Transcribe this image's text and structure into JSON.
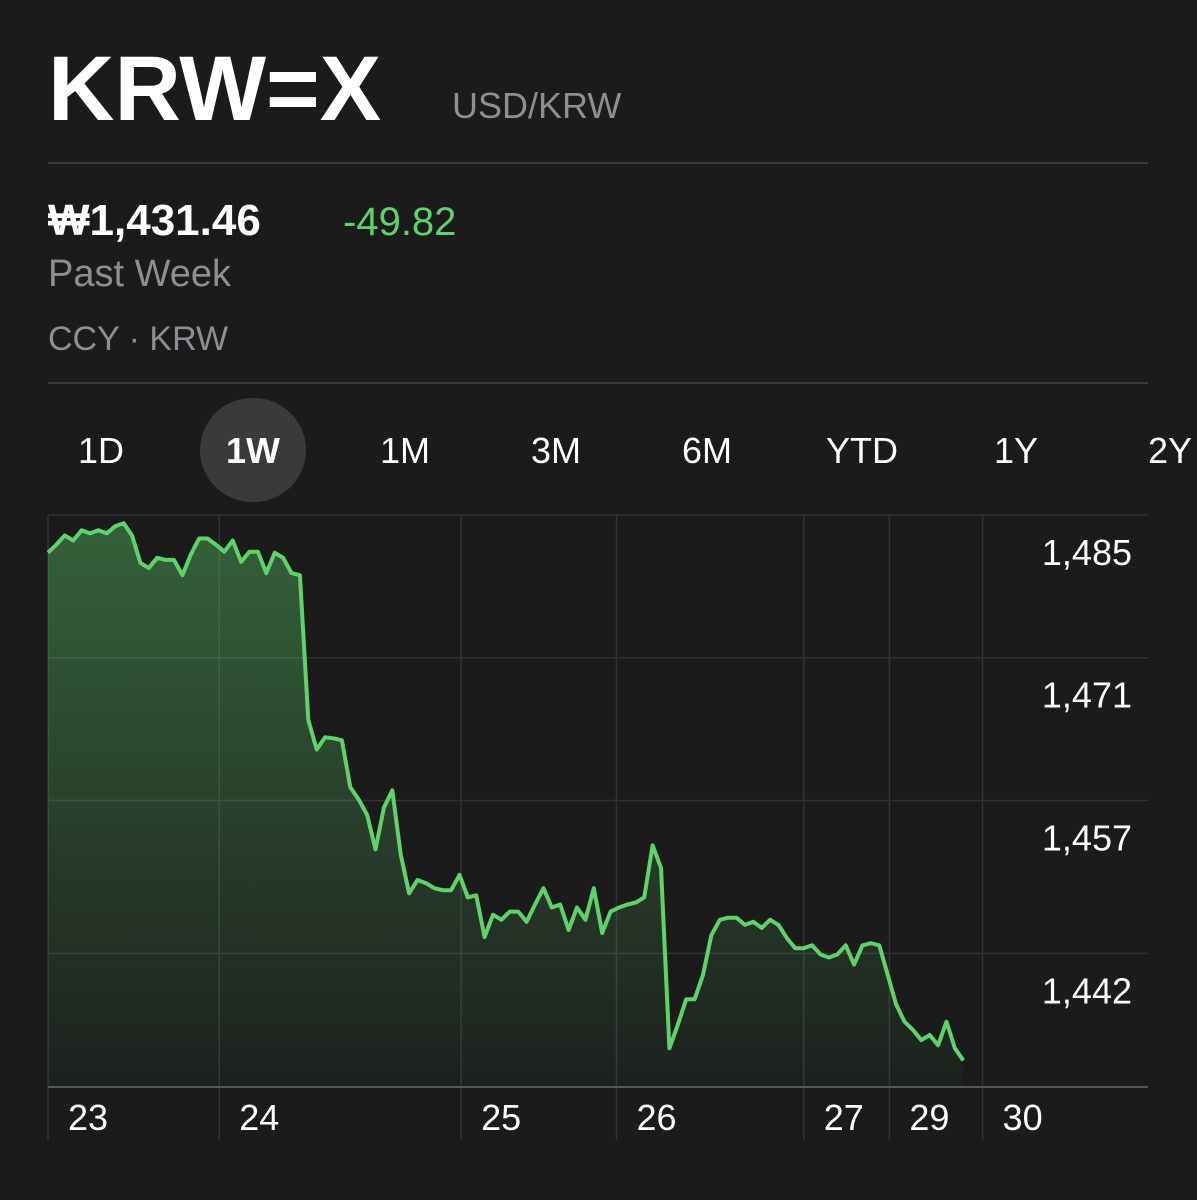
{
  "header": {
    "symbol": "KRW=X",
    "name": "USD/KRW",
    "price": "₩1,431.46",
    "change": "-49.82",
    "period": "Past Week",
    "exchange": "CCY · KRW"
  },
  "tabs": [
    "1D",
    "1W",
    "1M",
    "3M",
    "6M",
    "YTD",
    "1Y",
    "2Y"
  ],
  "selected_tab": 1,
  "chart_data": {
    "type": "line",
    "color": "#5fd36a",
    "grid": true,
    "values": [
      1481.3,
      1482.1,
      1483.0,
      1482.5,
      1483.5,
      1483.2,
      1483.5,
      1483.2,
      1483.9,
      1484.2,
      1483.0,
      1480.3,
      1479.8,
      1480.8,
      1480.6,
      1480.6,
      1479.1,
      1481.1,
      1482.7,
      1482.7,
      1482.1,
      1481.4,
      1482.5,
      1480.4,
      1481.4,
      1481.4,
      1479.3,
      1481.3,
      1480.8,
      1479.3,
      1479.1,
      1464.9,
      1462.0,
      1463.2,
      1463.1,
      1462.9,
      1458.3,
      1457.1,
      1455.6,
      1452.2,
      1456.3,
      1458.0,
      1451.7,
      1447.9,
      1449.2,
      1448.9,
      1448.4,
      1448.2,
      1448.2,
      1449.7,
      1447.5,
      1447.7,
      1443.6,
      1445.8,
      1445.3,
      1446.1,
      1446.1,
      1445.1,
      1446.8,
      1448.4,
      1446.5,
      1446.8,
      1444.3,
      1446.5,
      1445.3,
      1448.4,
      1444.0,
      1446.1,
      1446.5,
      1446.8,
      1447.0,
      1447.5,
      1452.6,
      1450.4,
      1432.7,
      1435.0,
      1437.5,
      1437.5,
      1439.9,
      1443.8,
      1445.3,
      1445.5,
      1445.5,
      1444.8,
      1445.1,
      1444.5,
      1445.3,
      1444.8,
      1443.5,
      1442.5,
      1442.5,
      1442.8,
      1441.9,
      1441.6,
      1441.9,
      1442.8,
      1440.9,
      1442.8,
      1443.0,
      1442.8,
      1439.9,
      1437.0,
      1435.3,
      1434.5,
      1433.5,
      1434.0,
      1433.0,
      1435.3,
      1432.7,
      1431.5
    ],
    "xlim": [
      0,
      131
    ],
    "xticks": [
      {
        "value": 0,
        "label": "23"
      },
      {
        "value": 20.4,
        "label": "24"
      },
      {
        "value": 49.2,
        "label": "25"
      },
      {
        "value": 67.7,
        "label": "26"
      },
      {
        "value": 90,
        "label": "27"
      },
      {
        "value": 100.2,
        "label": "29"
      },
      {
        "value": 111.3,
        "label": "30"
      }
    ],
    "ylim": [
      1428.9,
      1485
    ],
    "yticks": [
      {
        "value": 1485,
        "label": "1,485"
      },
      {
        "value": 1471,
        "label": "1,471"
      },
      {
        "value": 1457,
        "label": "1,457"
      },
      {
        "value": 1442,
        "label": "1,442"
      }
    ]
  }
}
